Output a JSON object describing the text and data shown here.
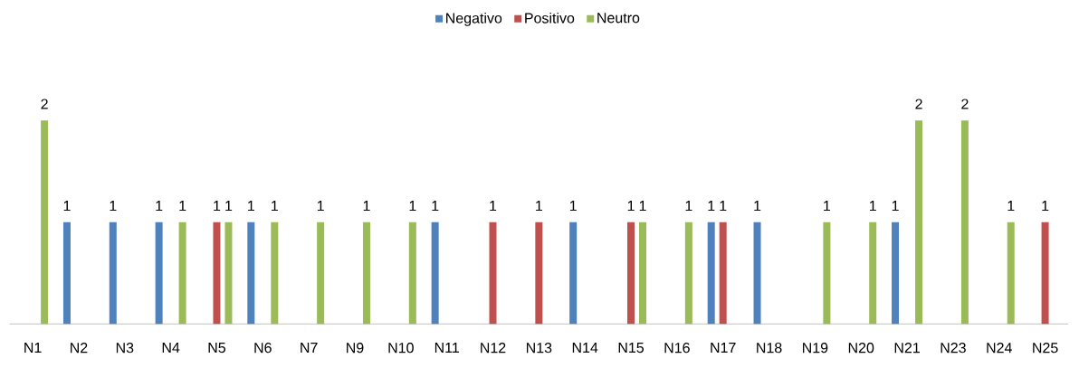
{
  "chart_data": {
    "type": "bar",
    "categories": [
      "N1",
      "N2",
      "N3",
      "N4",
      "N5",
      "N6",
      "N7",
      "N9",
      "N10",
      "N11",
      "N12",
      "N13",
      "N14",
      "N15",
      "N16",
      "N17",
      "N18",
      "N19",
      "N20",
      "N21",
      "N23",
      "N24",
      "N25"
    ],
    "series": [
      {
        "name": "Negativo",
        "color": "#4f81bd",
        "values": [
          null,
          1,
          1,
          1,
          null,
          1,
          null,
          null,
          null,
          1,
          null,
          null,
          1,
          null,
          null,
          1,
          1,
          null,
          null,
          1,
          null,
          null,
          null
        ]
      },
      {
        "name": "Positivo",
        "color": "#c0504d",
        "values": [
          null,
          null,
          null,
          null,
          1,
          null,
          null,
          null,
          null,
          null,
          1,
          1,
          null,
          1,
          null,
          1,
          null,
          null,
          null,
          null,
          null,
          null,
          1
        ]
      },
      {
        "name": "Neutro",
        "color": "#9bbb59",
        "values": [
          2,
          null,
          null,
          1,
          1,
          1,
          1,
          1,
          1,
          null,
          null,
          null,
          null,
          1,
          1,
          null,
          null,
          1,
          1,
          2,
          2,
          1,
          null
        ]
      }
    ],
    "data_labels": true,
    "legend": "top"
  }
}
